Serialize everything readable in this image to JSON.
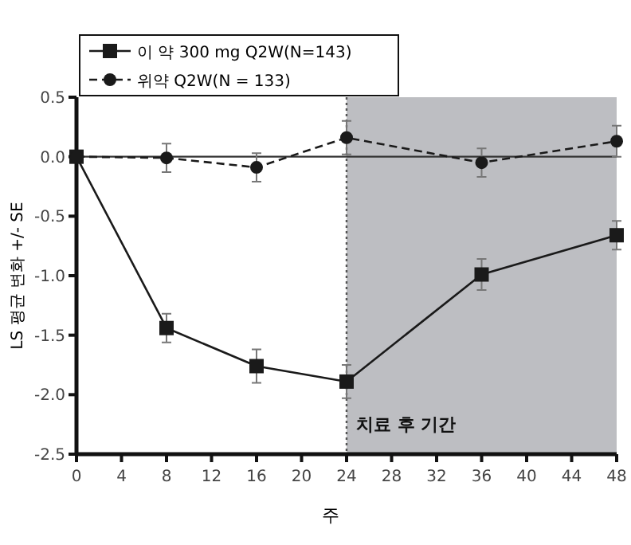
{
  "chart_data": {
    "type": "line",
    "xlabel": "주",
    "ylabel": "LS 평균 변화 +/- SE",
    "x": [
      0,
      8,
      16,
      24,
      36,
      48
    ],
    "series": [
      {
        "name": "이 약 300 mg Q2W(N=143)",
        "color": "#1a1a1a",
        "marker": "square",
        "line_style": "solid",
        "values": [
          0,
          -1.44,
          -1.76,
          -1.89,
          -0.99,
          -0.66
        ],
        "errors": [
          null,
          0.12,
          0.14,
          0.14,
          0.13,
          0.12
        ]
      },
      {
        "name": "위약 Q2W(N = 133)",
        "color": "#1a1a1a",
        "marker": "circle",
        "line_style": "dashed",
        "values": [
          0,
          -0.01,
          -0.09,
          0.16,
          -0.05,
          0.13
        ],
        "errors": [
          null,
          0.12,
          0.12,
          0.14,
          0.12,
          0.13
        ]
      }
    ],
    "xlim": [
      0,
      48
    ],
    "xticks": [
      0,
      4,
      8,
      12,
      16,
      20,
      24,
      28,
      32,
      36,
      40,
      44,
      48
    ],
    "ylim": [
      -2.5,
      0.5
    ],
    "yticks": [
      {
        "value": -2.5,
        "label": "-2.5"
      },
      {
        "value": -2.0,
        "label": "-2.0"
      },
      {
        "value": -1.5,
        "label": "-1.5"
      },
      {
        "value": -1.0,
        "label": "-1.0"
      },
      {
        "value": -0.5,
        "label": "-0.5"
      },
      {
        "value": 0,
        "label": "0.0"
      },
      {
        "value": 0.5,
        "label": "0.5"
      }
    ],
    "bands": [
      {
        "axis": "x",
        "from": 24,
        "to": 48,
        "label": "치료 후 기간",
        "color": "#bdbec2"
      }
    ],
    "ref_lines": [
      {
        "axis": "y",
        "value": 0,
        "color": "#333333",
        "line_style": "solid"
      },
      {
        "axis": "x",
        "value": 24,
        "color": "#555555",
        "line_style": "dotted"
      }
    ],
    "legend": "top left",
    "grid": false
  }
}
